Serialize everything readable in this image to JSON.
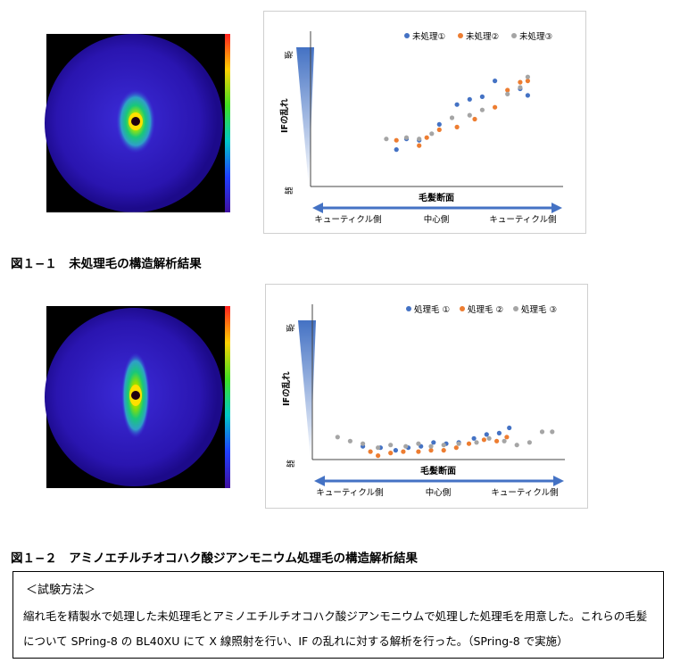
{
  "captions": {
    "fig1": "図１−１　未処理毛の構造解析結果",
    "fig2": "図１−２　アミノエチルチオコハク酸ジアンモニウム処理毛の構造解析結果"
  },
  "method": {
    "title": "＜試験方法＞",
    "line1": "縮れ毛を精製水で処理した未処理毛とアミノエチルチオコハク酸ジアンモニウムで処理した処理毛を用意した。これらの毛髪",
    "line2": "について SPring-8 の BL40XU にて X 線照射を行い、IF の乱れに対する解析を行った。（SPring-8 で実施）"
  },
  "colors": {
    "series1": "#4472c4",
    "series2": "#ed7d31",
    "series3": "#a5a5a5",
    "arrow": "#4472c4"
  },
  "chart_data": [
    {
      "type": "scatter",
      "ylabel": "IFの乱れ",
      "xlabel": "毛髪断面",
      "y_high_label": "強",
      "y_low_label": "弱",
      "x_axis_labels": [
        "キューティクル側",
        "中心側",
        "キューティクル側"
      ],
      "legend_position": "top-right",
      "grid": false,
      "xlim": [
        0,
        1
      ],
      "ylim": [
        0,
        1
      ],
      "series": [
        {
          "name": "未処理①",
          "x": [
            0.34,
            0.38,
            0.43,
            0.51,
            0.58,
            0.63,
            0.68,
            0.73,
            0.83,
            0.86
          ],
          "y": [
            0.28,
            0.36,
            0.35,
            0.47,
            0.62,
            0.66,
            0.68,
            0.8,
            0.74,
            0.69
          ]
        },
        {
          "name": "未処理②",
          "x": [
            0.34,
            0.43,
            0.46,
            0.51,
            0.58,
            0.65,
            0.73,
            0.78,
            0.83,
            0.86
          ],
          "y": [
            0.35,
            0.31,
            0.37,
            0.43,
            0.45,
            0.51,
            0.6,
            0.73,
            0.79,
            0.8
          ]
        },
        {
          "name": "未処理③",
          "x": [
            0.3,
            0.38,
            0.43,
            0.48,
            0.56,
            0.63,
            0.68,
            0.78,
            0.83,
            0.86
          ],
          "y": [
            0.36,
            0.37,
            0.36,
            0.4,
            0.52,
            0.54,
            0.58,
            0.7,
            0.75,
            0.83
          ]
        }
      ]
    },
    {
      "type": "scatter",
      "ylabel": "IFの乱れ",
      "xlabel": "毛髪断面",
      "y_high_label": "強",
      "y_low_label": "弱",
      "x_axis_labels": [
        "キューティクル側",
        "中心側",
        "キューティクル側"
      ],
      "legend_position": "top-right",
      "grid": false,
      "xlim": [
        0,
        1
      ],
      "ylim": [
        0,
        1
      ],
      "series": [
        {
          "name": "処理毛 ①",
          "x": [
            0.2,
            0.27,
            0.33,
            0.38,
            0.43,
            0.48,
            0.53,
            0.58,
            0.64,
            0.69,
            0.74,
            0.78
          ],
          "y": [
            0.1,
            0.09,
            0.07,
            0.09,
            0.1,
            0.13,
            0.12,
            0.13,
            0.16,
            0.19,
            0.2,
            0.24
          ]
        },
        {
          "name": "処理毛 ②",
          "x": [
            0.23,
            0.26,
            0.31,
            0.36,
            0.42,
            0.47,
            0.52,
            0.57,
            0.62,
            0.68,
            0.73,
            0.77
          ],
          "y": [
            0.06,
            0.03,
            0.05,
            0.06,
            0.06,
            0.07,
            0.07,
            0.09,
            0.12,
            0.15,
            0.14,
            0.17
          ]
        },
        {
          "name": "処理毛 ③",
          "x": [
            0.1,
            0.15,
            0.2,
            0.26,
            0.31,
            0.37,
            0.42,
            0.47,
            0.52,
            0.58,
            0.65,
            0.7,
            0.76,
            0.81,
            0.86,
            0.91,
            0.95
          ],
          "y": [
            0.17,
            0.14,
            0.12,
            0.09,
            0.11,
            0.1,
            0.12,
            0.1,
            0.11,
            0.12,
            0.13,
            0.16,
            0.14,
            0.11,
            0.13,
            0.21,
            0.21
          ]
        }
      ]
    }
  ]
}
